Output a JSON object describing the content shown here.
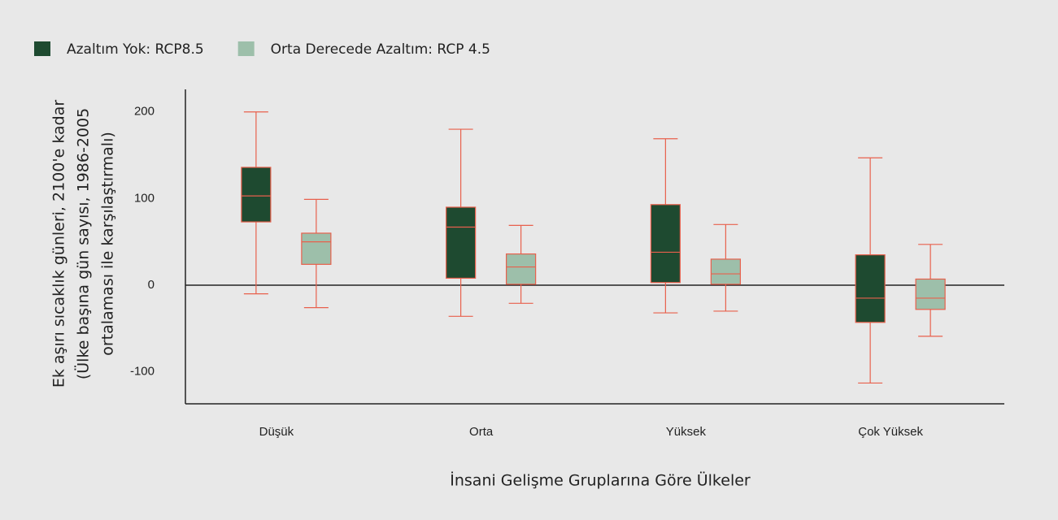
{
  "chart_data": {
    "type": "box",
    "ylabel": [
      "Ek aşırı sıcaklık günleri, 2100'e kadar",
      "(Ülke başına gün sayısı, 1986-2005",
      "ortalaması ile karşılaştırmalı)"
    ],
    "xlabel": "İnsani Gelişme Gruplarına Göre Ülkeler",
    "categories": [
      "Düşük",
      "Orta",
      "Yüksek",
      "Çok Yüksek"
    ],
    "ylim": [
      -137,
      226
    ],
    "yticks": [
      -100,
      0,
      100,
      200
    ],
    "whisker_color": "#e8604c",
    "legend": "top-left",
    "series": [
      {
        "name": "Azaltım Yok: RCP8.5",
        "color": "#1e4a30",
        "values": [
          {
            "min": -10,
            "q1": 73,
            "median": 103,
            "q3": 136,
            "max": 200
          },
          {
            "min": -36,
            "q1": 8,
            "median": 67,
            "q3": 90,
            "max": 180
          },
          {
            "min": -32,
            "q1": 3,
            "median": 38,
            "q3": 93,
            "max": 169
          },
          {
            "min": -113,
            "q1": -43,
            "median": -15,
            "q3": 35,
            "max": 147
          }
        ]
      },
      {
        "name": "Orta Derecede Azaltım: RCP 4.5",
        "color": "#9dbfaa",
        "values": [
          {
            "min": -26,
            "q1": 24,
            "median": 50,
            "q3": 60,
            "max": 99
          },
          {
            "min": -21,
            "q1": 1,
            "median": 21,
            "q3": 36,
            "max": 69
          },
          {
            "min": -30,
            "q1": 1,
            "median": 13,
            "q3": 30,
            "max": 70
          },
          {
            "min": -59,
            "q1": -28,
            "median": -15,
            "q3": 7,
            "max": 47
          }
        ]
      }
    ]
  }
}
